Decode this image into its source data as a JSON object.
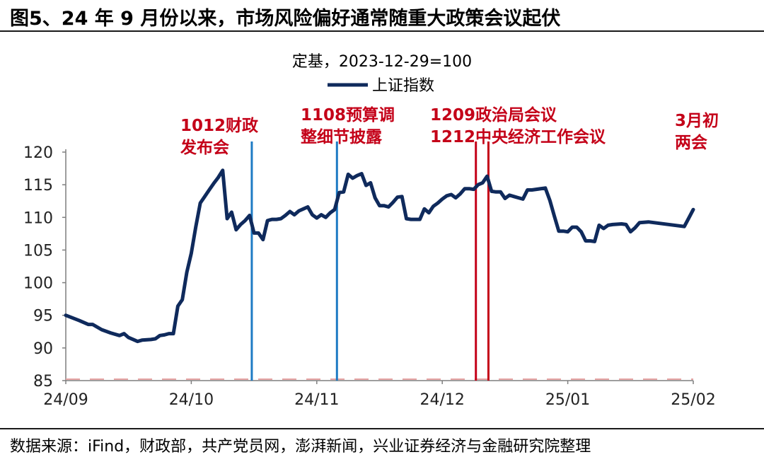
{
  "figure": {
    "title": "图5、24 年 9 月份以来，市场风险偏好通常随重大政策会议起伏",
    "source": "数据来源：iFind，财政部，共产党员网，澎湃新闻，兴业证券经济与金融研究院整理"
  },
  "chart_data": {
    "type": "line",
    "subtitle": "定基，2023-12-29=100",
    "x_tick_labels": [
      "24/09",
      "24/10",
      "24/11",
      "24/12",
      "25/01",
      "25/02"
    ],
    "ylim": [
      85,
      120
    ],
    "y_ticks": [
      85,
      90,
      95,
      100,
      105,
      110,
      115,
      120
    ],
    "legend": {
      "position": "top-center"
    },
    "series": [
      {
        "name": "上证指数",
        "color": "#0f2a5c",
        "points": [
          [
            0,
            95.0
          ],
          [
            3,
            94.2
          ],
          [
            5,
            93.6
          ],
          [
            6,
            93.6
          ],
          [
            8,
            92.8
          ],
          [
            10,
            92.3
          ],
          [
            12,
            91.9
          ],
          [
            13,
            92.2
          ],
          [
            14,
            91.6
          ],
          [
            16,
            91.0
          ],
          [
            17,
            91.2
          ],
          [
            19,
            91.3
          ],
          [
            20,
            91.4
          ],
          [
            21,
            91.9
          ],
          [
            22,
            92.0
          ],
          [
            23,
            92.2
          ],
          [
            24,
            92.2
          ],
          [
            25,
            96.4
          ],
          [
            26,
            97.4
          ],
          [
            27,
            101.6
          ],
          [
            28,
            104.5
          ],
          [
            29,
            108.5
          ],
          [
            30,
            112.2
          ],
          [
            31,
            113.2
          ],
          [
            32,
            114.2
          ],
          [
            33,
            115.2
          ],
          [
            34,
            116.1
          ],
          [
            35,
            117.2
          ],
          [
            36,
            109.8
          ],
          [
            37,
            110.8
          ],
          [
            38,
            108.1
          ],
          [
            39,
            108.9
          ],
          [
            40,
            109.5
          ],
          [
            41,
            110.3
          ],
          [
            42,
            107.6
          ],
          [
            43,
            107.6
          ],
          [
            44,
            106.6
          ],
          [
            45,
            109.5
          ],
          [
            46,
            109.7
          ],
          [
            47,
            109.7
          ],
          [
            48,
            109.8
          ],
          [
            49,
            110.3
          ],
          [
            50,
            110.9
          ],
          [
            51,
            110.4
          ],
          [
            52,
            111.0
          ],
          [
            53,
            111.3
          ],
          [
            54,
            111.6
          ],
          [
            55,
            110.4
          ],
          [
            56,
            109.9
          ],
          [
            57,
            110.4
          ],
          [
            58,
            110.0
          ],
          [
            59,
            110.7
          ],
          [
            60,
            111.2
          ],
          [
            61,
            113.8
          ],
          [
            62,
            113.9
          ],
          [
            63,
            116.6
          ],
          [
            64,
            116.0
          ],
          [
            65,
            116.4
          ],
          [
            66,
            116.7
          ],
          [
            67,
            114.9
          ],
          [
            68,
            115.3
          ],
          [
            69,
            113.0
          ],
          [
            70,
            111.8
          ],
          [
            71,
            111.8
          ],
          [
            72,
            111.6
          ],
          [
            73,
            112.3
          ],
          [
            74,
            113.1
          ],
          [
            75,
            113.2
          ],
          [
            76,
            109.8
          ],
          [
            77,
            109.7
          ],
          [
            78,
            109.7
          ],
          [
            79,
            109.7
          ],
          [
            80,
            111.3
          ],
          [
            81,
            110.7
          ],
          [
            82,
            111.7
          ],
          [
            83,
            112.2
          ],
          [
            84,
            112.8
          ],
          [
            85,
            113.3
          ],
          [
            86,
            113.5
          ],
          [
            87,
            113.0
          ],
          [
            88,
            113.6
          ],
          [
            89,
            114.4
          ],
          [
            90,
            114.4
          ],
          [
            91,
            114.3
          ],
          [
            92,
            115.0
          ],
          [
            93,
            115.3
          ],
          [
            94,
            116.3
          ],
          [
            95,
            114.0
          ],
          [
            96,
            113.9
          ],
          [
            97,
            113.9
          ],
          [
            98,
            112.9
          ],
          [
            99,
            113.4
          ],
          [
            100,
            113.2
          ],
          [
            101,
            113.0
          ],
          [
            102,
            112.8
          ],
          [
            103,
            114.2
          ],
          [
            104,
            114.2
          ],
          [
            107,
            114.5
          ],
          [
            108,
            112.6
          ],
          [
            109,
            110.2
          ],
          [
            110,
            107.9
          ],
          [
            111,
            107.9
          ],
          [
            112,
            107.8
          ],
          [
            113,
            108.5
          ],
          [
            114,
            108.5
          ],
          [
            115,
            107.8
          ],
          [
            116,
            106.4
          ],
          [
            117,
            106.4
          ],
          [
            118,
            106.3
          ],
          [
            119,
            108.8
          ],
          [
            120,
            108.3
          ],
          [
            121,
            108.8
          ],
          [
            122,
            108.9
          ],
          [
            124,
            109.0
          ],
          [
            125,
            108.9
          ],
          [
            126,
            107.8
          ],
          [
            127,
            108.4
          ],
          [
            128,
            109.2
          ],
          [
            130,
            109.3
          ],
          [
            138,
            108.6
          ],
          [
            139,
            109.9
          ],
          [
            140,
            111.2
          ]
        ]
      }
    ],
    "event_lines": [
      {
        "x": 41.5,
        "color": "#1e7bc4"
      },
      {
        "x": 60.5,
        "color": "#1e7bc4"
      },
      {
        "x": 91.5,
        "color": "#c40018"
      },
      {
        "x": 94.3,
        "color": "#c40018"
      }
    ],
    "annotations": [
      {
        "lines": [
          "1012财政",
          "发布会"
        ],
        "color": "#c40018"
      },
      {
        "lines": [
          "1108预算调",
          "整细节披露"
        ],
        "color": "#c40018"
      },
      {
        "lines": [
          "1209政治局会议",
          "1212中央经济工作会议"
        ],
        "color": "#c40018"
      },
      {
        "lines": [
          "3月初",
          "两会"
        ],
        "color": "#c40018"
      }
    ]
  }
}
